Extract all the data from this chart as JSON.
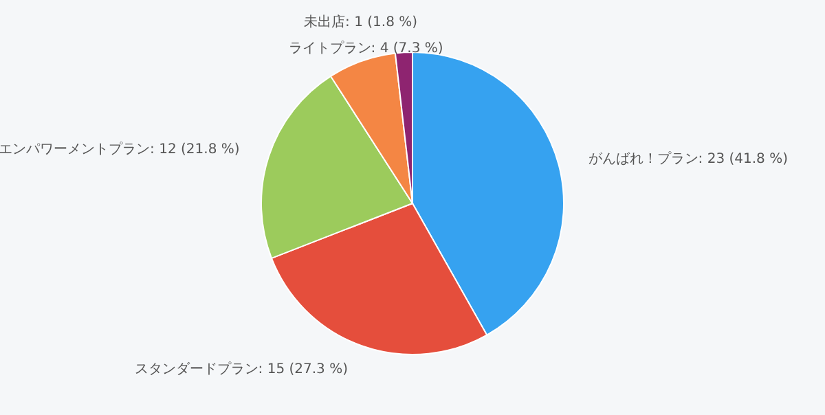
{
  "chart_data": {
    "type": "pie",
    "categories": [
      "がんばれ！プラン",
      "スタンダードプラン",
      "エンパワーメントプラン",
      "ライトプラン",
      "未出店"
    ],
    "values": [
      23,
      15,
      12,
      4,
      1
    ],
    "colors": [
      "#36a2f0",
      "#e54e3c",
      "#9ccb5c",
      "#f48644",
      "#8e2470"
    ],
    "value_labels": [
      "23 (41.8 %)",
      "15 (27.3 %)",
      "12 (21.8 %)",
      "4 (7.3 %)",
      "1 (1.8 %)"
    ]
  }
}
